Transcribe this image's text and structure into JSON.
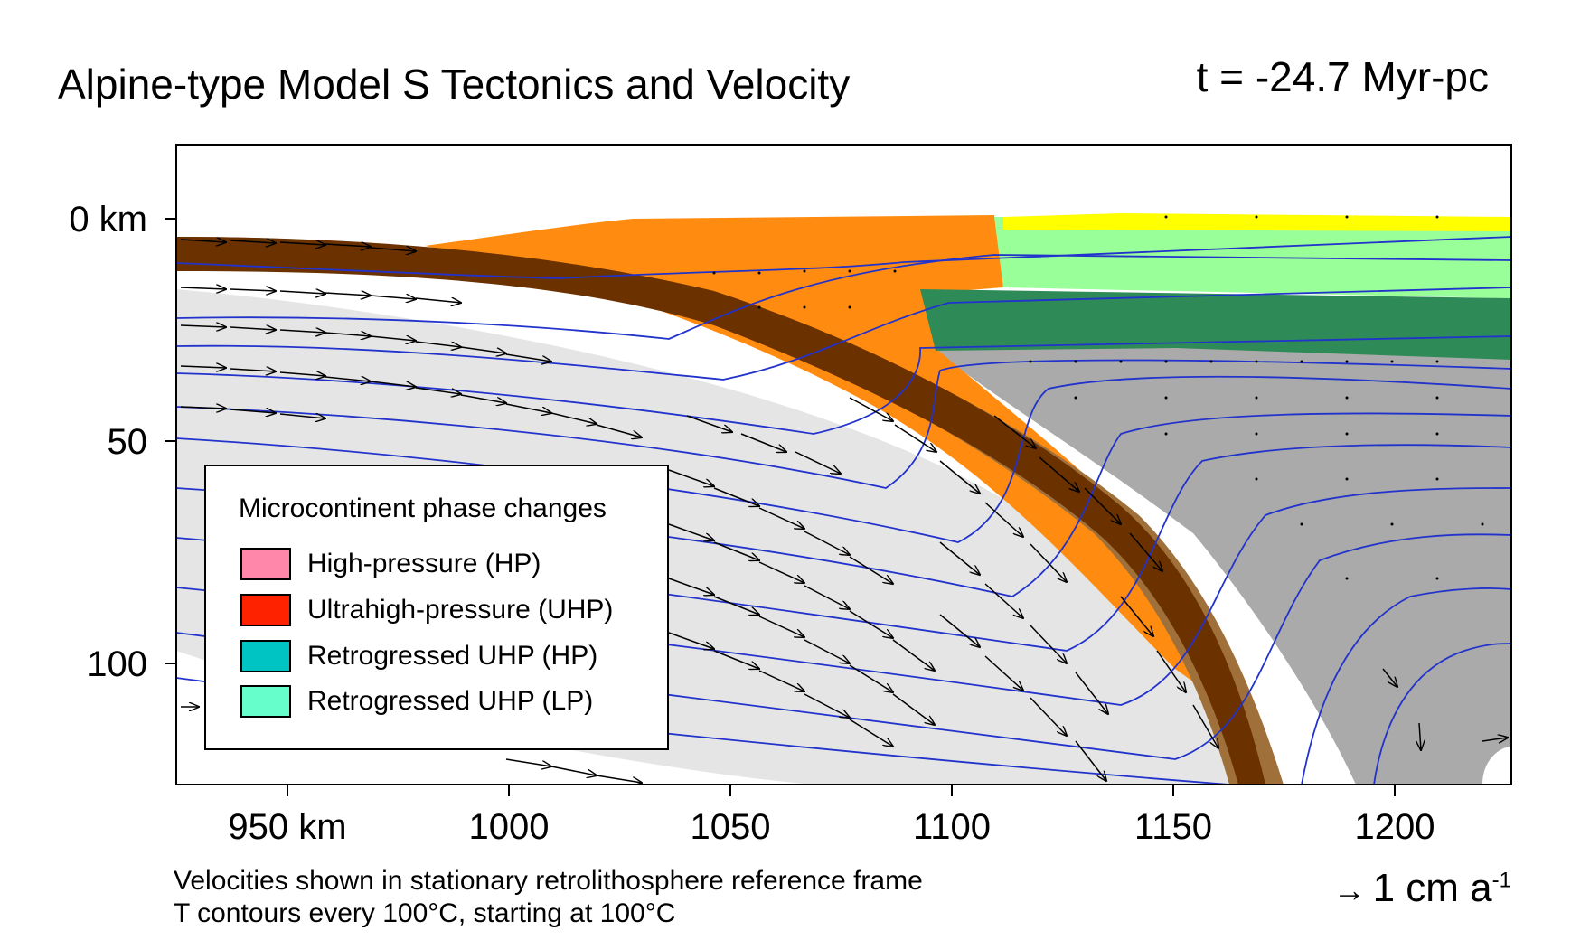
{
  "title": "Alpine-type Model S Tectonics and Velocity",
  "time_label": "t = -24.7 Myr-pc",
  "notes": {
    "line1": "Velocities shown in stationary retrolithosphere reference frame",
    "line2": "T contours every 100°C, starting at 100°C"
  },
  "velocity_scale": {
    "arrow": "→",
    "value": "1 cm a",
    "exponent": "-1"
  },
  "legend": {
    "title": "Microcontinent phase changes",
    "items": [
      {
        "label": "High-pressure (HP)",
        "color": "#ff88aa"
      },
      {
        "label": "Ultrahigh-pressure (UHP)",
        "color": "#ff2200"
      },
      {
        "label": "Retrogressed UHP (HP)",
        "color": "#00c4c4"
      },
      {
        "label": "Retrogressed UHP (LP)",
        "color": "#66ffcc"
      }
    ]
  },
  "axes": {
    "x_ticks": [
      "950 km",
      "1000",
      "1050",
      "1100",
      "1150",
      "1200"
    ],
    "y_ticks": [
      "0 km",
      "50",
      "100"
    ]
  },
  "colors": {
    "mantle_pro": "#e5e5e5",
    "mantle_retro": "#aaaaaa",
    "slab_crust_dark": "#6b3200",
    "slab_crust_light": "#a0703a",
    "orogen_wedge": "#ff8c10",
    "retro_upper_crust": "#99ff99",
    "retro_lower_crust": "#2e8b57",
    "surface_sediment": "#ffff00",
    "isotherm": "#2233cc",
    "velocity_arrow": "#000000"
  }
}
